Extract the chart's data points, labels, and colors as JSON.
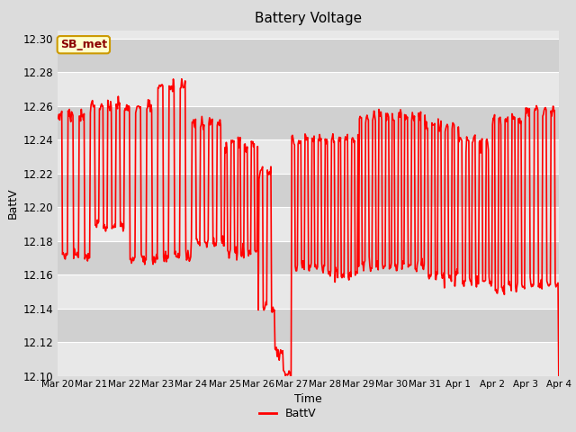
{
  "title": "Battery Voltage",
  "xlabel": "Time",
  "ylabel": "BattV",
  "ylim": [
    12.1,
    12.305
  ],
  "yticks": [
    12.1,
    12.12,
    12.14,
    12.16,
    12.18,
    12.2,
    12.22,
    12.24,
    12.26,
    12.28,
    12.3
  ],
  "x_labels": [
    "Mar 20",
    "Mar 21",
    "Mar 22",
    "Mar 23",
    "Mar 24",
    "Mar 25",
    "Mar 26",
    "Mar 27",
    "Mar 28",
    "Mar 29",
    "Mar 30",
    "Mar 31",
    "Apr 1",
    "Apr 2",
    "Apr 3",
    "Apr 4"
  ],
  "line_color": "#FF0000",
  "line_width": 1.2,
  "bg_color": "#DCDCDC",
  "plot_bg_color": "#E8E8E8",
  "band_color_dark": "#D0D0D0",
  "band_color_light": "#E8E8E8",
  "legend_label": "BattV",
  "tag_label": "SB_met",
  "tag_bg": "#FFFFCC",
  "tag_border": "#CC9900",
  "tag_text_color": "#8B0000",
  "figsize": [
    6.4,
    4.8
  ],
  "dpi": 100
}
